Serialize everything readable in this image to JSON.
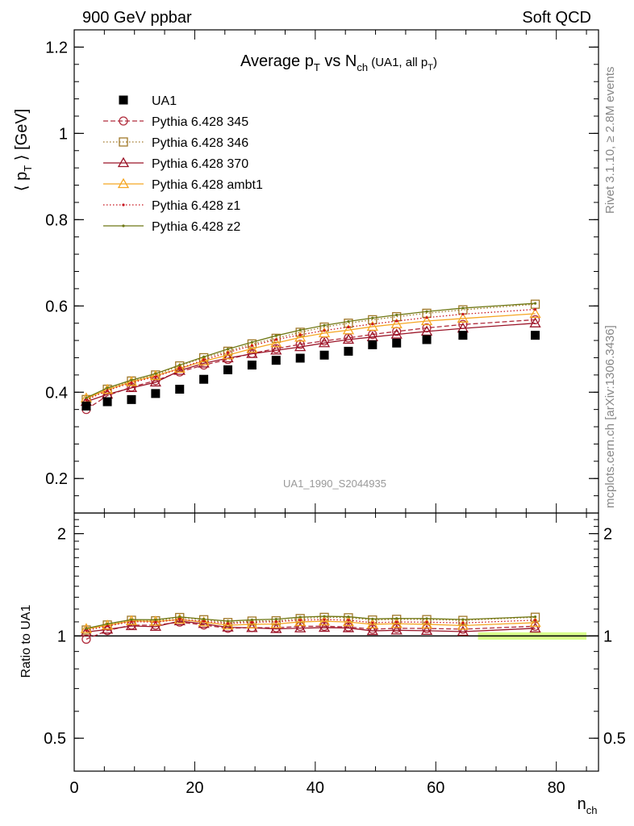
{
  "header": {
    "left": "900 GeV ppbar",
    "right": "Soft QCD",
    "side_top": "Rivet 3.1.10, ≥ 2.8M events",
    "side_bottom": "mcplots.cern.ch [arXiv:1306.3436]"
  },
  "chart_data": [
    {
      "type": "scatter",
      "title": {
        "main": "Average p",
        "sub1": "T",
        "mid": " vs N",
        "sub2": "ch",
        "small": " (UA1, all p",
        "sub3": "T",
        "end": ")"
      },
      "ylabel": {
        "lbrack": "⟨ p",
        "sub": "T",
        "rbrack": " ⟩ [GeV]"
      },
      "watermark": "UA1_1990_S2044935",
      "xlim": [
        0,
        87
      ],
      "ylim": [
        0.12,
        1.24
      ],
      "x_ticks": [
        0,
        20,
        40,
        60,
        80
      ],
      "y_ticks": [
        {
          "v": 0.2,
          "label": "0.2"
        },
        {
          "v": 0.4,
          "label": "0.4"
        },
        {
          "v": 0.6,
          "label": "0.6"
        },
        {
          "v": 0.8,
          "label": "0.8"
        },
        {
          "v": 1.0,
          "label": "1"
        },
        {
          "v": 1.2,
          "label": "1.2"
        }
      ],
      "legend_position": "top-left",
      "x": [
        2,
        5.5,
        9.5,
        13.5,
        17.5,
        21.5,
        25.5,
        29.5,
        33.5,
        37.5,
        41.5,
        45.5,
        49.5,
        53.5,
        58.5,
        64.5,
        76.5
      ],
      "series": [
        {
          "name": "UA1",
          "color": "#000000",
          "marker": "filled-square",
          "line": "none",
          "values": [
            0.368,
            0.378,
            0.383,
            0.397,
            0.407,
            0.43,
            0.452,
            0.463,
            0.474,
            0.479,
            0.486,
            0.495,
            0.51,
            0.514,
            0.522,
            0.532,
            0.532
          ]
        },
        {
          "name": "Pythia 6.428 345",
          "color": "#b02c3c",
          "marker": "open-circle",
          "line": "dashed",
          "values": [
            0.36,
            0.392,
            0.412,
            0.427,
            0.447,
            0.463,
            0.476,
            0.49,
            0.501,
            0.511,
            0.519,
            0.526,
            0.534,
            0.541,
            0.549,
            0.557,
            0.568
          ]
        },
        {
          "name": "Pythia 6.428 346",
          "color": "#a07828",
          "marker": "open-square",
          "line": "dotted",
          "values": [
            0.383,
            0.407,
            0.426,
            0.44,
            0.461,
            0.48,
            0.495,
            0.512,
            0.525,
            0.539,
            0.551,
            0.56,
            0.568,
            0.575,
            0.583,
            0.591,
            0.604
          ]
        },
        {
          "name": "Pythia 6.428 370",
          "color": "#9a1428",
          "marker": "open-triangle",
          "line": "solid",
          "values": [
            0.378,
            0.395,
            0.41,
            0.423,
            0.45,
            0.467,
            0.479,
            0.489,
            0.497,
            0.505,
            0.514,
            0.522,
            0.528,
            0.534,
            0.541,
            0.548,
            0.56
          ]
        },
        {
          "name": "Pythia 6.428 ambt1",
          "color": "#f5a623",
          "marker": "open-triangle",
          "line": "solid",
          "values": [
            0.386,
            0.406,
            0.424,
            0.438,
            0.455,
            0.472,
            0.486,
            0.501,
            0.514,
            0.527,
            0.537,
            0.544,
            0.552,
            0.558,
            0.565,
            0.571,
            0.582
          ]
        },
        {
          "name": "Pythia 6.428 z1",
          "color": "#c8141e",
          "marker": "dot",
          "line": "dotted",
          "values": [
            0.382,
            0.404,
            0.422,
            0.436,
            0.455,
            0.475,
            0.492,
            0.508,
            0.522,
            0.533,
            0.543,
            0.551,
            0.558,
            0.565,
            0.573,
            0.581,
            0.592
          ]
        },
        {
          "name": "Pythia 6.428 z2",
          "color": "#6e7814",
          "marker": "dot",
          "line": "solid",
          "values": [
            0.387,
            0.41,
            0.428,
            0.443,
            0.463,
            0.482,
            0.5,
            0.516,
            0.531,
            0.544,
            0.555,
            0.564,
            0.572,
            0.579,
            0.587,
            0.595,
            0.606
          ]
        }
      ]
    },
    {
      "type": "scatter",
      "ylabel": "Ratio to UA1",
      "xlabel": {
        "main": "n",
        "sub": "ch"
      },
      "xlim": [
        0,
        87
      ],
      "ylim": [
        0.4,
        2.3
      ],
      "log_y": true,
      "x_ticks": [
        {
          "v": 0,
          "label": "0"
        },
        {
          "v": 20,
          "label": "20"
        },
        {
          "v": 40,
          "label": "40"
        },
        {
          "v": 60,
          "label": "60"
        },
        {
          "v": 80,
          "label": "80"
        }
      ],
      "y_ticks": [
        {
          "v": 0.5,
          "label": "0.5"
        },
        {
          "v": 1,
          "label": "1"
        },
        {
          "v": 2,
          "label": "2"
        }
      ],
      "reference_line": 1,
      "uncertainty_band": {
        "x_from": 67,
        "x_to": 85,
        "low": 0.975,
        "high": 1.025,
        "color": "#ccff66"
      },
      "x": [
        2,
        5.5,
        9.5,
        13.5,
        17.5,
        21.5,
        25.5,
        29.5,
        33.5,
        37.5,
        41.5,
        45.5,
        49.5,
        53.5,
        58.5,
        64.5,
        76.5
      ],
      "series": [
        {
          "name": "Pythia 6.428 345",
          "color": "#b02c3c",
          "marker": "open-circle",
          "line": "dashed",
          "values": [
            0.978,
            1.037,
            1.076,
            1.076,
            1.098,
            1.077,
            1.053,
            1.058,
            1.057,
            1.067,
            1.068,
            1.063,
            1.047,
            1.053,
            1.052,
            1.047,
            1.068
          ]
        },
        {
          "name": "Pythia 6.428 346",
          "color": "#a07828",
          "marker": "open-square",
          "line": "dotted",
          "values": [
            1.041,
            1.077,
            1.112,
            1.108,
            1.133,
            1.116,
            1.095,
            1.106,
            1.108,
            1.125,
            1.134,
            1.131,
            1.114,
            1.119,
            1.117,
            1.111,
            1.135
          ]
        },
        {
          "name": "Pythia 6.428 370",
          "color": "#9a1428",
          "marker": "open-triangle",
          "line": "solid",
          "values": [
            1.027,
            1.045,
            1.07,
            1.065,
            1.106,
            1.086,
            1.06,
            1.056,
            1.049,
            1.054,
            1.058,
            1.055,
            1.035,
            1.039,
            1.036,
            1.03,
            1.053
          ]
        },
        {
          "name": "Pythia 6.428 ambt1",
          "color": "#f5a623",
          "marker": "open-triangle",
          "line": "solid",
          "values": [
            1.049,
            1.074,
            1.107,
            1.103,
            1.118,
            1.098,
            1.075,
            1.082,
            1.084,
            1.1,
            1.105,
            1.099,
            1.082,
            1.086,
            1.082,
            1.073,
            1.094
          ]
        },
        {
          "name": "Pythia 6.428 z1",
          "color": "#c8141e",
          "marker": "dot",
          "line": "dotted",
          "values": [
            1.038,
            1.069,
            1.102,
            1.098,
            1.118,
            1.105,
            1.088,
            1.097,
            1.101,
            1.113,
            1.117,
            1.113,
            1.094,
            1.099,
            1.098,
            1.092,
            1.113
          ]
        },
        {
          "name": "Pythia 6.428 z2",
          "color": "#6e7814",
          "marker": "dot",
          "line": "solid",
          "values": [
            1.052,
            1.085,
            1.117,
            1.116,
            1.138,
            1.121,
            1.106,
            1.115,
            1.12,
            1.136,
            1.142,
            1.139,
            1.122,
            1.126,
            1.125,
            1.118,
            1.139
          ]
        }
      ]
    }
  ]
}
